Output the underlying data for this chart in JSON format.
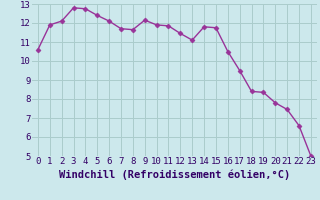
{
  "x": [
    0,
    1,
    2,
    3,
    4,
    5,
    6,
    7,
    8,
    9,
    10,
    11,
    12,
    13,
    14,
    15,
    16,
    17,
    18,
    19,
    20,
    21,
    22,
    23
  ],
  "y": [
    10.6,
    11.9,
    12.1,
    12.8,
    12.75,
    12.4,
    12.1,
    11.7,
    11.65,
    12.15,
    11.9,
    11.85,
    11.45,
    11.1,
    11.8,
    11.75,
    10.5,
    9.5,
    8.4,
    8.35,
    7.8,
    7.45,
    6.6,
    5.0
  ],
  "line_color": "#993399",
  "marker": "D",
  "marker_size": 2.5,
  "bg_color": "#cce8ec",
  "grid_color": "#aacccc",
  "xlabel": "Windchill (Refroidissement éolien,°C)",
  "ylim": [
    5,
    13
  ],
  "xlim": [
    -0.5,
    23.5
  ],
  "yticks": [
    5,
    6,
    7,
    8,
    9,
    10,
    11,
    12,
    13
  ],
  "xticks": [
    0,
    1,
    2,
    3,
    4,
    5,
    6,
    7,
    8,
    9,
    10,
    11,
    12,
    13,
    14,
    15,
    16,
    17,
    18,
    19,
    20,
    21,
    22,
    23
  ],
  "tick_label_size": 6.5,
  "xlabel_size": 7.5,
  "line_width": 1.0
}
